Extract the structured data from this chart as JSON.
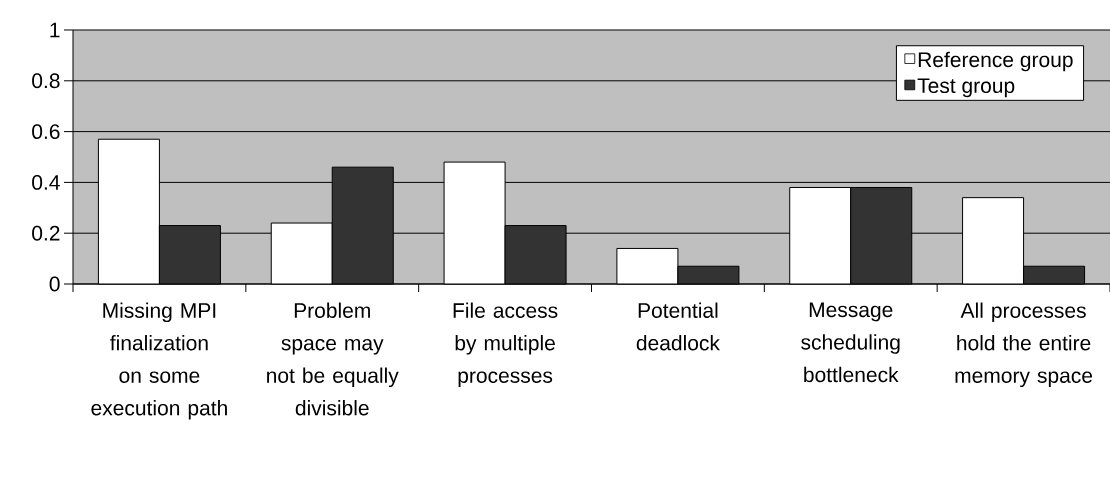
{
  "chart_data": {
    "type": "bar",
    "categories": [
      "Missing MPI finalization on some execution path",
      "Problem space may not be equally divisible",
      "File access by multiple processes",
      "Potential deadlock",
      "Message scheduling bottleneck",
      "All processes hold the entire memory space"
    ],
    "series": [
      {
        "name": "Reference group",
        "color": "#ffffff",
        "values": [
          0.57,
          0.24,
          0.48,
          0.14,
          0.38,
          0.34
        ]
      },
      {
        "name": "Test group",
        "color": "#333333",
        "values": [
          0.23,
          0.46,
          0.23,
          0.07,
          0.38,
          0.07
        ]
      }
    ],
    "ylim": [
      0,
      1
    ],
    "yticks": [
      0,
      0.2,
      0.4,
      0.6,
      0.8,
      1
    ],
    "grid": "y",
    "legend": "top right"
  }
}
